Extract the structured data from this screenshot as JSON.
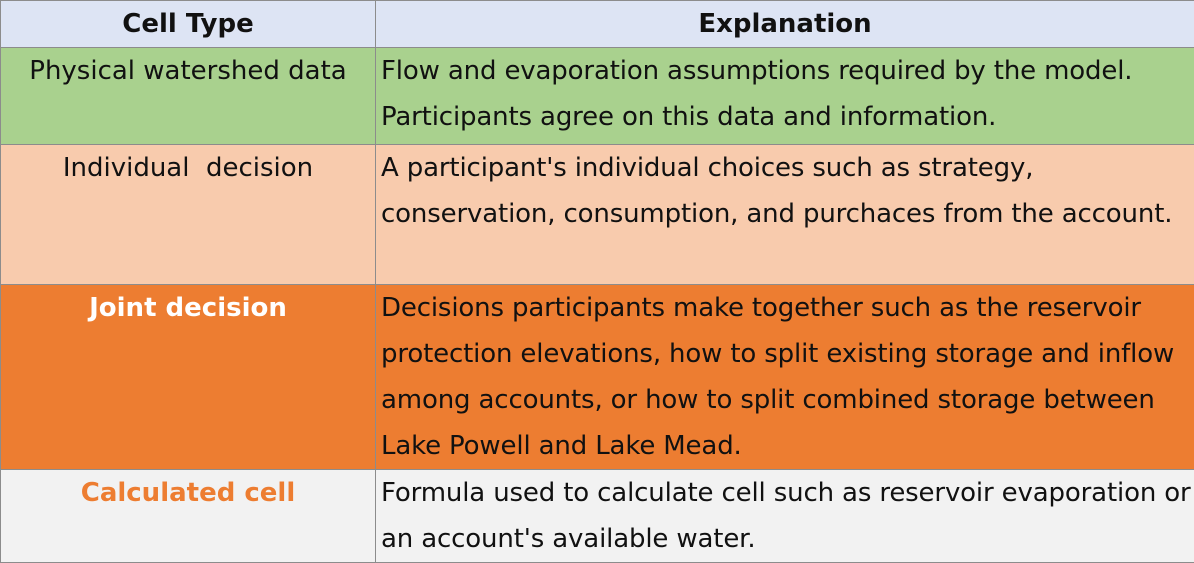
{
  "header": {
    "col1": "Cell Type",
    "col2": "Explanation"
  },
  "rows": [
    {
      "type": "Physical watershed data",
      "explanation": "Flow and evaporation assumptions required by the model. Participants agree on this data and information."
    },
    {
      "type": "Individual  decision",
      "explanation": "A participant's individual choices such as strategy, conservation, consumption, and purchaces from the account."
    },
    {
      "type": "Joint decision",
      "explanation": "Decisions participants make together such as the reservoir protection elevations, how to split existing storage and inflow among accounts, or how to split combined storage between Lake Powell and Lake Mead."
    },
    {
      "type": "Calculated cell",
      "explanation": "Formula used to calculate cell such as reservoir evaporation or an account's available water."
    }
  ],
  "colors": {
    "header_bg": "#dde4f4",
    "physical_bg": "#a9d18e",
    "individual_bg": "#f8cbad",
    "joint_bg": "#ed7d31",
    "calculated_bg": "#f2f2f2",
    "calculated_text": "#ed7d31"
  }
}
